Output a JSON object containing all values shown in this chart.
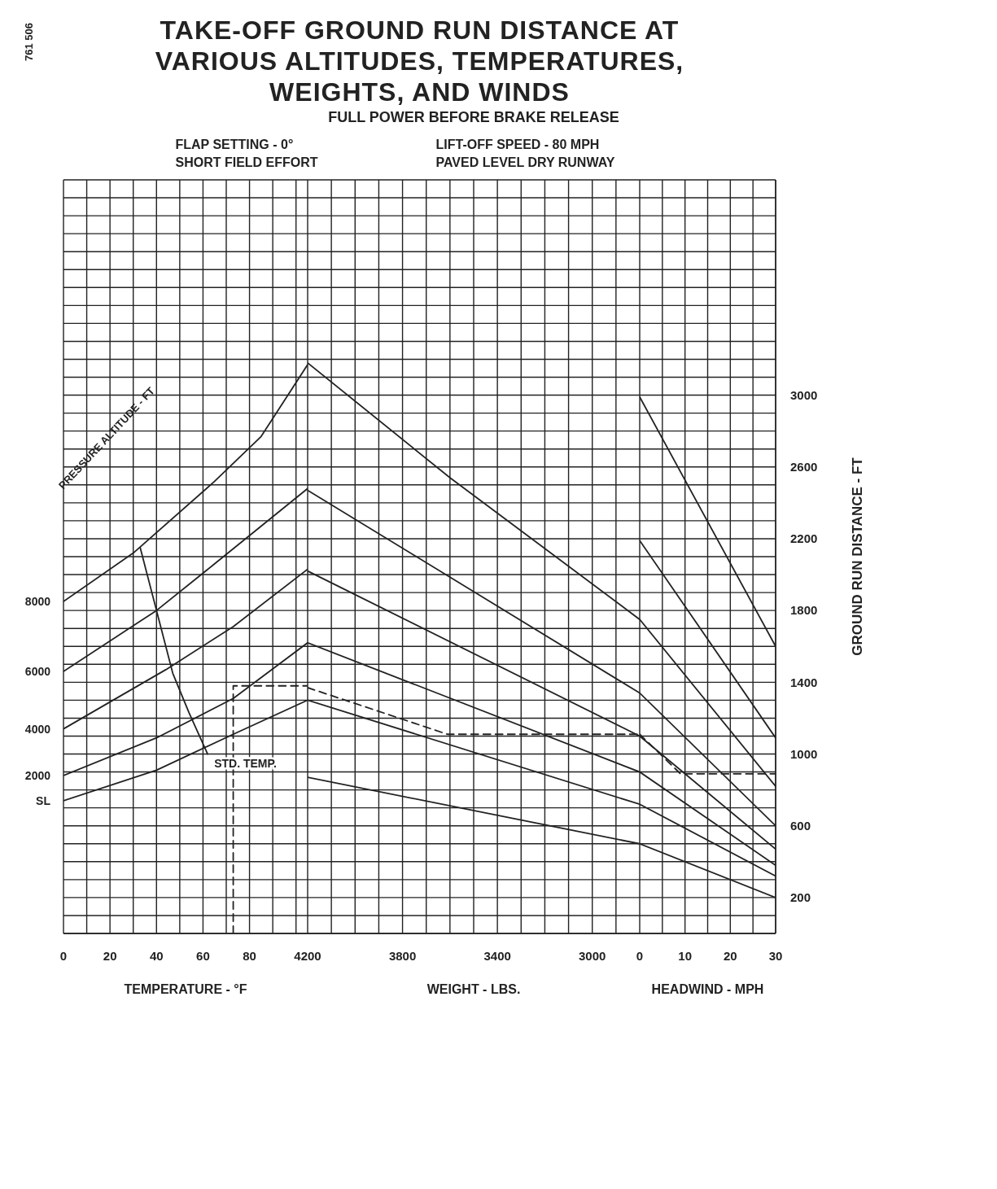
{
  "chart_data": [
    {
      "type": "line",
      "title": "TAKE-OFF GROUND RUN DISTANCE AT VARIOUS ALTITUDES, TEMPERATURES, WEIGHTS, AND WINDS",
      "annotations": [
        "FLAP SETTING - 0°",
        "LIFT-OFF SPEED - 80 MPH",
        "SHORT FIELD EFFORT",
        "PAVED LEVEL DRY RUNWAY",
        "761 506",
        "PRESSURE ALTITUDE - FT"
      ],
      "xlabel": "TEMPERATURE - °F",
      "xlim": [
        0,
        105
      ],
      "xticks": [
        0,
        {
          "value": 10,
          "label": null
        },
        20,
        {
          "value": 30,
          "label": null
        },
        40,
        {
          "value": 50,
          "label": null
        },
        60,
        {
          "value": 70,
          "label": null
        },
        80,
        {
          "value": 90,
          "label": null
        },
        {
          "value": 100,
          "label": null
        }
      ],
      "ylim": [
        0,
        4200
      ],
      "yticks": [
        {
          "value": 0,
          "label": null
        },
        {
          "value": 100,
          "label": null
        },
        200,
        {
          "value": 300,
          "label": null
        },
        {
          "value": 400,
          "label": null
        },
        {
          "value": 500,
          "label": null
        },
        600,
        {
          "value": 700,
          "label": null
        },
        {
          "value": 800,
          "label": null
        },
        {
          "value": 900,
          "label": null
        },
        1000,
        {
          "value": 1100,
          "label": null
        },
        {
          "value": 1200,
          "label": null
        },
        {
          "value": 1300,
          "label": null
        },
        1400,
        {
          "value": 1500,
          "label": null
        },
        {
          "value": 1600,
          "label": null
        },
        {
          "value": 1700,
          "label": null
        },
        1800,
        {
          "value": 1900,
          "label": null
        },
        {
          "value": 2000,
          "label": null
        },
        {
          "value": 2100,
          "label": null
        },
        2200,
        {
          "value": 2300,
          "label": null
        },
        {
          "value": 2400,
          "label": null
        },
        {
          "value": 2500,
          "label": null
        },
        2600,
        {
          "value": 2700,
          "label": null
        },
        {
          "value": 2800,
          "label": null
        },
        {
          "value": 2900,
          "label": null
        },
        3000,
        {
          "value": 3100,
          "label": null
        },
        {
          "value": 3200,
          "label": null
        },
        {
          "value": 3300,
          "label": null
        },
        {
          "value": 3400,
          "label": null
        },
        {
          "value": 3500,
          "label": null
        },
        {
          "value": 3600,
          "label": null
        },
        {
          "value": 3700,
          "label": null
        },
        {
          "value": 3800,
          "label": null
        },
        {
          "value": 3900,
          "label": null
        },
        {
          "value": 4000,
          "label": null
        },
        {
          "value": 4100,
          "label": null
        },
        {
          "value": 4200,
          "label": null
        }
      ],
      "tick_labels": "x",
      "grid": true,
      "marker": "none",
      "line_style": "solid",
      "series": [
        {
          "name": "8000",
          "color": "#222222",
          "x": [
            0,
            30,
            65,
            85,
            105
          ],
          "values": [
            1850,
            2120,
            2520,
            2770,
            3170
          ]
        },
        {
          "name": "6000",
          "color": "#222222",
          "x": [
            0,
            40,
            65,
            105
          ],
          "values": [
            1460,
            1800,
            2060,
            2480
          ]
        },
        {
          "name": "4000",
          "color": "#222222",
          "x": [
            0,
            44,
            73,
            105
          ],
          "values": [
            1140,
            1470,
            1710,
            2030
          ]
        },
        {
          "name": "2000",
          "color": "#222222",
          "x": [
            0,
            40,
            73,
            105
          ],
          "values": [
            880,
            1090,
            1310,
            1620
          ]
        },
        {
          "name": "SL",
          "color": "#222222",
          "x": [
            0,
            40,
            73,
            105
          ],
          "values": [
            740,
            910,
            1110,
            1300
          ]
        },
        {
          "name": "STD. TEMP.",
          "color": "#222222",
          "x": [
            33,
            40,
            47,
            54,
            62
          ],
          "values": [
            2150,
            1800,
            1450,
            1230,
            1000
          ]
        },
        {
          "color": "#222222",
          "line_style": "dashed",
          "x": [
            73,
            73,
            105
          ],
          "values": [
            0,
            1380,
            1380
          ]
        }
      ]
    },
    {
      "type": "line",
      "subtitle": "FULL POWER BEFORE BRAKE RELEASE",
      "xlabel": "WEIGHT - LBS.",
      "xlim": [
        4200,
        2800
      ],
      "xticks": [
        4200,
        {
          "value": 4100,
          "label": null
        },
        {
          "value": 4000,
          "label": null
        },
        {
          "value": 3900,
          "label": null
        },
        3800,
        {
          "value": 3700,
          "label": null
        },
        {
          "value": 3600,
          "label": null
        },
        {
          "value": 3500,
          "label": null
        },
        3400,
        {
          "value": 3300,
          "label": null
        },
        {
          "value": 3200,
          "label": null
        },
        {
          "value": 3100,
          "label": null
        },
        3000,
        {
          "value": 2900,
          "label": null
        }
      ],
      "ylim": [
        0,
        4200
      ],
      "yticks": [
        {
          "value": 0,
          "label": null
        },
        {
          "value": 100,
          "label": null
        },
        200,
        {
          "value": 300,
          "label": null
        },
        {
          "value": 400,
          "label": null
        },
        {
          "value": 500,
          "label": null
        },
        600,
        {
          "value": 700,
          "label": null
        },
        {
          "value": 800,
          "label": null
        },
        {
          "value": 900,
          "label": null
        },
        1000,
        {
          "value": 1100,
          "label": null
        },
        {
          "value": 1200,
          "label": null
        },
        {
          "value": 1300,
          "label": null
        },
        1400,
        {
          "value": 1500,
          "label": null
        },
        {
          "value": 1600,
          "label": null
        },
        {
          "value": 1700,
          "label": null
        },
        1800,
        {
          "value": 1900,
          "label": null
        },
        {
          "value": 2000,
          "label": null
        },
        {
          "value": 2100,
          "label": null
        },
        2200,
        {
          "value": 2300,
          "label": null
        },
        {
          "value": 2400,
          "label": null
        },
        {
          "value": 2500,
          "label": null
        },
        2600,
        {
          "value": 2700,
          "label": null
        },
        {
          "value": 2800,
          "label": null
        },
        {
          "value": 2900,
          "label": null
        },
        3000,
        {
          "value": 3100,
          "label": null
        },
        {
          "value": 3200,
          "label": null
        },
        {
          "value": 3300,
          "label": null
        },
        {
          "value": 3400,
          "label": null
        },
        {
          "value": 3500,
          "label": null
        },
        {
          "value": 3600,
          "label": null
        },
        {
          "value": 3700,
          "label": null
        },
        {
          "value": 3800,
          "label": null
        },
        {
          "value": 3900,
          "label": null
        },
        {
          "value": 4000,
          "label": null
        },
        {
          "value": 4100,
          "label": null
        },
        {
          "value": 4200,
          "label": null
        }
      ],
      "tick_labels": "x",
      "grid": true,
      "marker": "none",
      "line_style": "solid",
      "series": [
        {
          "color": "#222222",
          "x": [
            4200,
            3600,
            2800
          ],
          "values": [
            3180,
            2540,
            1750
          ]
        },
        {
          "color": "#222222",
          "x": [
            4200,
            2800
          ],
          "values": [
            2470,
            1340
          ]
        },
        {
          "color": "#222222",
          "x": [
            4200,
            2800
          ],
          "values": [
            2020,
            1100
          ]
        },
        {
          "color": "#222222",
          "x": [
            4200,
            2800
          ],
          "values": [
            1620,
            900
          ]
        },
        {
          "color": "#222222",
          "x": [
            4200,
            2800
          ],
          "values": [
            1300,
            720
          ]
        },
        {
          "color": "#222222",
          "x": [
            4200,
            2800
          ],
          "values": [
            870,
            500
          ]
        },
        {
          "color": "#222222",
          "line_style": "dashed",
          "x": [
            4200,
            3610,
            2800
          ],
          "values": [
            1370,
            1110,
            1110
          ]
        }
      ]
    },
    {
      "type": "line",
      "xlabel": "HEADWIND - MPH",
      "ylabel": "GROUND RUN DISTANCE - FT",
      "xlim": [
        0,
        30
      ],
      "xticks": [
        0,
        {
          "value": 5,
          "label": null
        },
        10,
        {
          "value": 15,
          "label": null
        },
        20,
        {
          "value": 25,
          "label": null
        },
        30
      ],
      "ylim": [
        0,
        4200
      ],
      "yticks": [
        {
          "value": 0,
          "label": null
        },
        {
          "value": 100,
          "label": null
        },
        200,
        {
          "value": 300,
          "label": null
        },
        {
          "value": 400,
          "label": null
        },
        {
          "value": 500,
          "label": null
        },
        600,
        {
          "value": 700,
          "label": null
        },
        {
          "value": 800,
          "label": null
        },
        {
          "value": 900,
          "label": null
        },
        1000,
        {
          "value": 1100,
          "label": null
        },
        {
          "value": 1200,
          "label": null
        },
        {
          "value": 1300,
          "label": null
        },
        1400,
        {
          "value": 1500,
          "label": null
        },
        {
          "value": 1600,
          "label": null
        },
        {
          "value": 1700,
          "label": null
        },
        1800,
        {
          "value": 1900,
          "label": null
        },
        {
          "value": 2000,
          "label": null
        },
        {
          "value": 2100,
          "label": null
        },
        2200,
        {
          "value": 2300,
          "label": null
        },
        {
          "value": 2400,
          "label": null
        },
        {
          "value": 2500,
          "label": null
        },
        2600,
        {
          "value": 2700,
          "label": null
        },
        {
          "value": 2800,
          "label": null
        },
        {
          "value": 2900,
          "label": null
        },
        3000,
        {
          "value": 3100,
          "label": null
        },
        {
          "value": 3200,
          "label": null
        },
        {
          "value": 3300,
          "label": null
        },
        {
          "value": 3400,
          "label": null
        },
        {
          "value": 3500,
          "label": null
        },
        {
          "value": 3600,
          "label": null
        },
        {
          "value": 3700,
          "label": null
        },
        {
          "value": 3800,
          "label": null
        },
        {
          "value": 3900,
          "label": null
        },
        {
          "value": 4000,
          "label": null
        },
        {
          "value": 4100,
          "label": null
        },
        {
          "value": 4200,
          "label": null
        }
      ],
      "grid": true,
      "marker": "none",
      "line_style": "solid",
      "series": [
        {
          "color": "#222222",
          "x": [
            0,
            30
          ],
          "values": [
            2990,
            1600
          ]
        },
        {
          "color": "#222222",
          "x": [
            0,
            30
          ],
          "values": [
            2190,
            1090
          ]
        },
        {
          "color": "#222222",
          "x": [
            0,
            30
          ],
          "values": [
            1750,
            820
          ]
        },
        {
          "color": "#222222",
          "x": [
            0,
            30
          ],
          "values": [
            1340,
            600
          ]
        },
        {
          "color": "#222222",
          "x": [
            0,
            30
          ],
          "values": [
            1100,
            470
          ]
        },
        {
          "color": "#222222",
          "x": [
            0,
            30
          ],
          "values": [
            900,
            380
          ]
        },
        {
          "color": "#222222",
          "x": [
            0,
            30
          ],
          "values": [
            720,
            320
          ]
        },
        {
          "color": "#222222",
          "x": [
            0,
            30
          ],
          "values": [
            500,
            200
          ]
        },
        {
          "color": "#222222",
          "line_style": "dashed",
          "x": [
            0,
            9,
            30
          ],
          "values": [
            1110,
            890,
            890
          ]
        }
      ]
    }
  ]
}
